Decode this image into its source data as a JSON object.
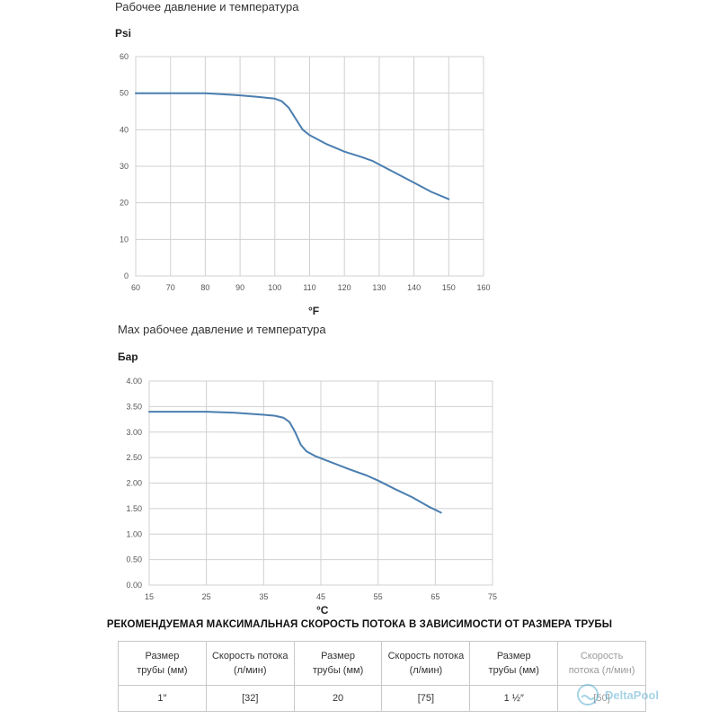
{
  "chart_data": [
    {
      "type": "line",
      "title": "Рабочее давление и температура",
      "ylabel": "Psi",
      "xlabel": "°F",
      "xlim": [
        60,
        160
      ],
      "ylim": [
        0,
        60
      ],
      "xticks": [
        "60",
        "70",
        "80",
        "90",
        "100",
        "110",
        "120",
        "130",
        "140",
        "150",
        "160"
      ],
      "yticks": [
        "0",
        "10",
        "20",
        "30",
        "40",
        "50",
        "60"
      ],
      "grid": true,
      "legend": "none",
      "series": [
        {
          "color": "#4a7eb0",
          "x": [
            60,
            70,
            75,
            80,
            85,
            90,
            95,
            100,
            102,
            104,
            106,
            108,
            110,
            115,
            120,
            125,
            128,
            130,
            135,
            140,
            145,
            150
          ],
          "y": [
            50,
            50,
            50,
            50,
            49.7,
            49.4,
            49,
            48.5,
            47.8,
            46,
            43,
            40,
            38.5,
            36,
            34,
            32.5,
            31.5,
            30.5,
            28,
            25.5,
            23,
            21
          ]
        }
      ]
    },
    {
      "type": "line",
      "title": "Max рабочее давление и температура",
      "ylabel": "Бар",
      "xlabel": "°C",
      "xlim": [
        15,
        75
      ],
      "ylim": [
        0,
        4
      ],
      "xticks": [
        "15",
        "25",
        "35",
        "45",
        "55",
        "65",
        "75"
      ],
      "yticks": [
        "0.00",
        "0.50",
        "1.00",
        "1.50",
        "2.00",
        "2.50",
        "3.00",
        "3.50",
        "4.00"
      ],
      "grid": true,
      "legend": "none",
      "series": [
        {
          "color": "#4a7eb0",
          "x": [
            15,
            20,
            25,
            30,
            35,
            37,
            38.5,
            39.5,
            40.5,
            41.5,
            42.5,
            44,
            47,
            50,
            53,
            55,
            58,
            61,
            64,
            66
          ],
          "y": [
            3.4,
            3.4,
            3.4,
            3.38,
            3.34,
            3.32,
            3.28,
            3.2,
            3.0,
            2.75,
            2.62,
            2.53,
            2.4,
            2.27,
            2.15,
            2.05,
            1.88,
            1.72,
            1.53,
            1.42
          ]
        }
      ]
    }
  ],
  "table": {
    "heading": "РЕКОМЕНДУЕМАЯ МАКСИМАЛЬНАЯ СКОРОСТЬ ПОТОКА В ЗАВИСИМОСТИ ОТ РАЗМЕРА ТРУБЫ",
    "headers": [
      [
        "Размер",
        "трубы (мм)"
      ],
      [
        "Скорость потока",
        "(л/мин)"
      ],
      [
        "Размер",
        "трубы (мм)"
      ],
      [
        "Скорость потока",
        "(л/мин)"
      ],
      [
        "Размер",
        "трубы (мм)"
      ],
      [
        "Скорость",
        "потока (л/мин)"
      ]
    ],
    "row": [
      "1″",
      "[32]",
      "20",
      "[75]",
      "1 ½″",
      "[50]"
    ]
  },
  "watermark": {
    "text": "DeltaPool",
    "icon": "deltapool-logo-icon"
  }
}
